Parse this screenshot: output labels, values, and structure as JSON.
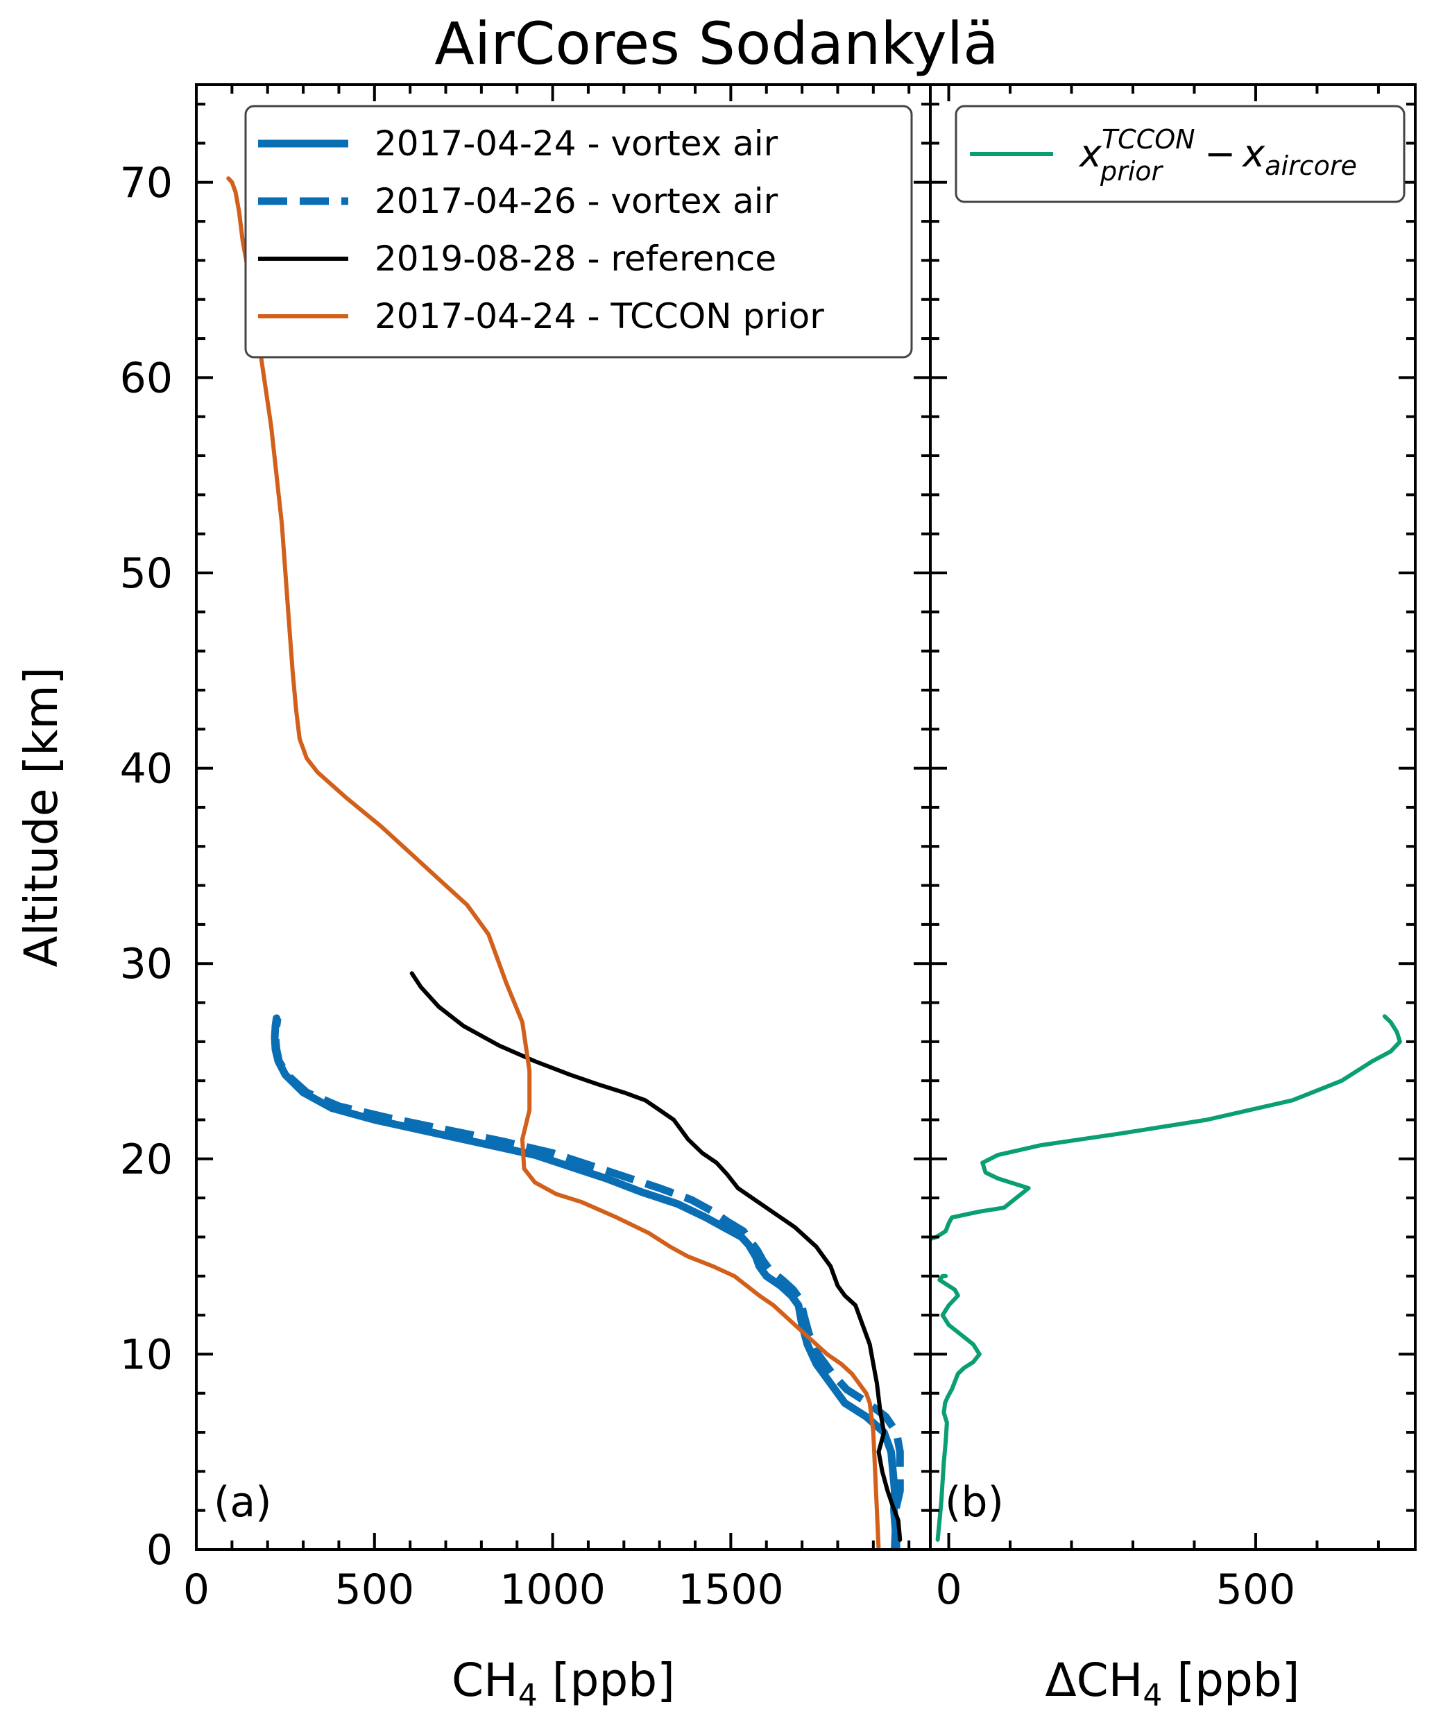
{
  "title": "AirCores Sodankylä",
  "colors": {
    "vortex": "#0a6eb4",
    "reference": "#000000",
    "prior": "#d2601a",
    "diff": "#0a9e73"
  },
  "chart_data": [
    {
      "type": "line",
      "panel_label": "(a)",
      "xlabel_main": "CH",
      "xlabel_sub": "4",
      "xlabel_unit": " [ppb]",
      "ylabel": "Altitude [km]",
      "xlim": [
        0,
        2060
      ],
      "ylim": [
        0,
        75
      ],
      "xticks": [
        0,
        500,
        1000,
        1500
      ],
      "yticks": [
        0,
        10,
        20,
        30,
        40,
        50,
        60,
        70
      ],
      "legend_position": "upper-right",
      "series": [
        {
          "name": "2017-04-24 - vortex air",
          "style": "solid-thick",
          "x": [
            1960,
            1962,
            1958,
            1960,
            1955,
            1950,
            1930,
            1880,
            1820,
            1780,
            1740,
            1715,
            1700,
            1690,
            1670,
            1640,
            1600,
            1580,
            1570,
            1550,
            1530,
            1480,
            1430,
            1350,
            1250,
            1150,
            1050,
            950,
            800,
            650,
            500,
            380,
            300,
            250,
            230,
            222,
            220,
            222,
            225
          ],
          "y": [
            0,
            1,
            2,
            3,
            4,
            5,
            6,
            6.8,
            7.5,
            8.5,
            9.5,
            10.5,
            11.5,
            12.5,
            13,
            13.5,
            14,
            14.5,
            15,
            15.6,
            16,
            16.5,
            17,
            17.7,
            18.3,
            19,
            19.6,
            20.2,
            20.8,
            21.4,
            22,
            22.6,
            23.4,
            24.3,
            25,
            25.6,
            26.2,
            26.8,
            27.2
          ]
        },
        {
          "name": "2017-04-26 - vortex air",
          "style": "dashed-thick",
          "x": [
            1965,
            1965,
            1962,
            1975,
            1975,
            1965,
            1935,
            1885,
            1825,
            1785,
            1745,
            1720,
            1705,
            1695,
            1675,
            1645,
            1610,
            1590,
            1575,
            1555,
            1535,
            1490,
            1450,
            1390,
            1300,
            1200,
            1100,
            1000,
            860,
            700,
            540,
            400,
            310,
            255,
            232,
            225,
            222,
            225,
            228
          ],
          "y": [
            0,
            1,
            2,
            3,
            5,
            6,
            6.8,
            7.5,
            8.2,
            9,
            10,
            11,
            12,
            12.8,
            13.3,
            13.8,
            14.3,
            14.8,
            15.3,
            15.8,
            16.3,
            16.8,
            17.3,
            17.9,
            18.5,
            19.1,
            19.7,
            20.3,
            20.9,
            21.5,
            22.1,
            22.7,
            23.4,
            24.3,
            25,
            25.6,
            26.2,
            26.8,
            27.2
          ]
        },
        {
          "name": "2019-08-28 - reference",
          "style": "solid",
          "x": [
            1975,
            1970,
            1955,
            1940,
            1925,
            1915,
            1930,
            1920,
            1910,
            1900,
            1890,
            1870,
            1850,
            1820,
            1800,
            1780,
            1760,
            1740,
            1710,
            1680,
            1640,
            1600,
            1560,
            1520,
            1490,
            1460,
            1420,
            1380,
            1340,
            1300,
            1260,
            1200,
            1130,
            1050,
            950,
            850,
            750,
            680,
            630,
            605
          ],
          "y": [
            0.5,
            1.5,
            2.2,
            3,
            4,
            5,
            6,
            7,
            8.5,
            9.5,
            10.5,
            11.5,
            12.5,
            13,
            13.5,
            14.5,
            15,
            15.5,
            16,
            16.5,
            17,
            17.5,
            18,
            18.5,
            19.2,
            19.8,
            20.3,
            21,
            22,
            22.5,
            23,
            23.4,
            23.8,
            24.3,
            25,
            25.8,
            26.8,
            27.8,
            28.8,
            29.5
          ]
        },
        {
          "name": "2017-04-24 - TCCON prior",
          "style": "solid",
          "x": [
            1915,
            1910,
            1905,
            1900,
            1890,
            1880,
            1860,
            1840,
            1810,
            1770,
            1740,
            1680,
            1620,
            1580,
            1510,
            1450,
            1380,
            1330,
            1270,
            1180,
            1080,
            1010,
            950,
            920,
            915,
            935,
            935,
            915,
            870,
            820,
            760,
            700,
            610,
            520,
            420,
            340,
            310,
            290,
            280,
            270,
            260,
            250,
            240,
            225,
            210,
            190,
            170,
            150,
            130,
            120,
            110,
            100,
            90
          ],
          "y": [
            0,
            2,
            4,
            6,
            7.5,
            8,
            8.5,
            9,
            9.5,
            10,
            10.5,
            11.5,
            12.5,
            13,
            14,
            14.5,
            15,
            15.5,
            16.2,
            17,
            17.8,
            18.2,
            18.8,
            19.5,
            21,
            22.5,
            24.5,
            27,
            29,
            31.5,
            33,
            34,
            35.5,
            37,
            38.5,
            39.8,
            40.5,
            41.5,
            43,
            45,
            47.5,
            50,
            52.5,
            55,
            57.5,
            60,
            62.5,
            65,
            67,
            68.5,
            69.5,
            70,
            70.2
          ]
        }
      ]
    },
    {
      "type": "line",
      "panel_label": "(b)",
      "xlabel_main": "ΔCH",
      "xlabel_sub": "4",
      "xlabel_unit": " [ppb]",
      "xlim": [
        -30,
        760
      ],
      "ylim": [
        0,
        75
      ],
      "xticks": [
        0,
        500
      ],
      "yticks": [
        0,
        10,
        20,
        30,
        40,
        50,
        60,
        70
      ],
      "legend_position": "upper-right",
      "legend_math": {
        "base": "x",
        "sup": "TCCON",
        "sub": "prior",
        "minus": "−",
        "sub2": "aircore"
      },
      "series": [
        {
          "name": "",
          "style": "solid",
          "segments": [
            {
              "x": [
                -18,
                -15,
                -12,
                -10,
                -8,
                -5,
                -3,
                -8,
                -6,
                -2,
                5,
                10,
                15,
                25,
                40,
                50,
                40,
                20,
                0,
                -10,
                0,
                15,
                10,
                -5,
                -15,
                -10,
                -5
              ],
              "y": [
                0.5,
                1.5,
                2.5,
                3.5,
                4.5,
                5.5,
                6.5,
                7,
                7.5,
                7.8,
                8.2,
                8.6,
                9,
                9.3,
                9.6,
                10,
                10.5,
                11,
                11.5,
                12,
                12.5,
                13,
                13.3,
                13.6,
                13.8,
                14,
                14
              ]
            },
            {
              "x": [
                -40,
                -20,
                -5,
                0,
                5,
                50,
                90,
                130,
                100,
                80,
                60,
                55,
                80,
                150,
                280,
                420,
                560,
                640,
                690,
                720,
                735,
                730,
                720,
                710
              ],
              "y": [
                15.8,
                16,
                16.3,
                16.7,
                17,
                17.3,
                17.5,
                18.5,
                18.8,
                19,
                19.3,
                19.8,
                20.2,
                20.7,
                21.3,
                22,
                23,
                24,
                25,
                25.5,
                26,
                26.5,
                27,
                27.3
              ]
            }
          ]
        }
      ]
    }
  ]
}
